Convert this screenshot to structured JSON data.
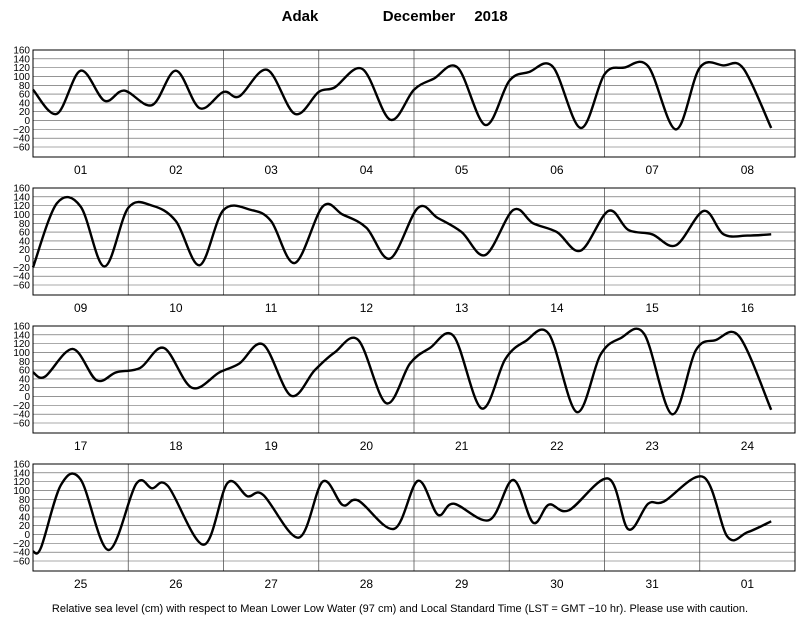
{
  "header": {
    "station": "Adak",
    "month": "December",
    "year": "2018"
  },
  "footnote": "Relative sea level (cm) with respect to Mean Lower Low Water (97 cm) and Local Standard Time (LST = GMT −10 hr). Please use with caution.",
  "chart_data": {
    "type": "line",
    "title": "Adak December 2018",
    "ylabel": "Relative sea level (cm)",
    "ylim": [
      -60,
      160
    ],
    "yticks": [
      160,
      140,
      120,
      100,
      80,
      60,
      40,
      20,
      0,
      -20,
      -40,
      -60
    ],
    "ytick_labels": [
      "160",
      "140",
      "120",
      "100",
      "80",
      "60",
      "40",
      "20",
      "0",
      "−20",
      "−40",
      "−60"
    ],
    "grid": true,
    "x_unit": "hour of day (LST)",
    "panels": [
      {
        "days": [
          "01",
          "02",
          "03",
          "04",
          "05",
          "06",
          "07",
          "08"
        ],
        "series": [
          {
            "x": 0,
            "y": 70
          },
          {
            "x": 6,
            "y": 15
          },
          {
            "x": 12,
            "y": 113
          },
          {
            "x": 18,
            "y": 45
          },
          {
            "x": 23,
            "y": 68
          },
          {
            "x": 30,
            "y": 35
          },
          {
            "x": 36,
            "y": 113
          },
          {
            "x": 42,
            "y": 28
          },
          {
            "x": 48,
            "y": 65
          },
          {
            "x": 52,
            "y": 55
          },
          {
            "x": 59,
            "y": 115
          },
          {
            "x": 66,
            "y": 15
          },
          {
            "x": 72,
            "y": 65
          },
          {
            "x": 76,
            "y": 75
          },
          {
            "x": 83,
            "y": 117
          },
          {
            "x": 90,
            "y": 2
          },
          {
            "x": 96,
            "y": 70
          },
          {
            "x": 101,
            "y": 95
          },
          {
            "x": 107,
            "y": 120
          },
          {
            "x": 114,
            "y": -10
          },
          {
            "x": 120,
            "y": 90
          },
          {
            "x": 125,
            "y": 110
          },
          {
            "x": 131,
            "y": 122
          },
          {
            "x": 138,
            "y": -17
          },
          {
            "x": 144,
            "y": 105
          },
          {
            "x": 149,
            "y": 120
          },
          {
            "x": 155,
            "y": 123
          },
          {
            "x": 162,
            "y": -20
          },
          {
            "x": 168,
            "y": 120
          },
          {
            "x": 174,
            "y": 125
          },
          {
            "x": 179,
            "y": 118
          },
          {
            "x": 186,
            "y": -17
          }
        ]
      },
      {
        "days": [
          "09",
          "10",
          "11",
          "12",
          "13",
          "14",
          "15",
          "16"
        ],
        "series": [
          {
            "x": 0,
            "y": -20
          },
          {
            "x": 6,
            "y": 125
          },
          {
            "x": 12,
            "y": 118
          },
          {
            "x": 18,
            "y": -18
          },
          {
            "x": 24,
            "y": 115
          },
          {
            "x": 30,
            "y": 120
          },
          {
            "x": 36,
            "y": 85
          },
          {
            "x": 42,
            "y": -15
          },
          {
            "x": 48,
            "y": 110
          },
          {
            "x": 55,
            "y": 110
          },
          {
            "x": 60,
            "y": 85
          },
          {
            "x": 66,
            "y": -10
          },
          {
            "x": 73,
            "y": 118
          },
          {
            "x": 78,
            "y": 100
          },
          {
            "x": 84,
            "y": 70
          },
          {
            "x": 90,
            "y": 0
          },
          {
            "x": 97,
            "y": 115
          },
          {
            "x": 102,
            "y": 92
          },
          {
            "x": 108,
            "y": 60
          },
          {
            "x": 114,
            "y": 8
          },
          {
            "x": 121,
            "y": 110
          },
          {
            "x": 126,
            "y": 80
          },
          {
            "x": 132,
            "y": 60
          },
          {
            "x": 138,
            "y": 18
          },
          {
            "x": 145,
            "y": 108
          },
          {
            "x": 150,
            "y": 65
          },
          {
            "x": 156,
            "y": 55
          },
          {
            "x": 162,
            "y": 30
          },
          {
            "x": 169,
            "y": 108
          },
          {
            "x": 174,
            "y": 55
          },
          {
            "x": 180,
            "y": 52
          },
          {
            "x": 186,
            "y": 55
          }
        ]
      },
      {
        "days": [
          "17",
          "18",
          "19",
          "20",
          "21",
          "22",
          "23",
          "24"
        ],
        "series": [
          {
            "x": 0,
            "y": 55
          },
          {
            "x": 3,
            "y": 45
          },
          {
            "x": 10,
            "y": 108
          },
          {
            "x": 16,
            "y": 37
          },
          {
            "x": 21,
            "y": 55
          },
          {
            "x": 27,
            "y": 65
          },
          {
            "x": 33,
            "y": 110
          },
          {
            "x": 40,
            "y": 20
          },
          {
            "x": 47,
            "y": 55
          },
          {
            "x": 52,
            "y": 75
          },
          {
            "x": 58,
            "y": 118
          },
          {
            "x": 65,
            "y": 2
          },
          {
            "x": 71,
            "y": 60
          },
          {
            "x": 76,
            "y": 100
          },
          {
            "x": 82,
            "y": 128
          },
          {
            "x": 89,
            "y": -15
          },
          {
            "x": 95,
            "y": 75
          },
          {
            "x": 100,
            "y": 110
          },
          {
            "x": 106,
            "y": 137
          },
          {
            "x": 113,
            "y": -27
          },
          {
            "x": 119,
            "y": 85
          },
          {
            "x": 124,
            "y": 125
          },
          {
            "x": 130,
            "y": 142
          },
          {
            "x": 137,
            "y": -35
          },
          {
            "x": 143,
            "y": 95
          },
          {
            "x": 148,
            "y": 132
          },
          {
            "x": 154,
            "y": 142
          },
          {
            "x": 161,
            "y": -40
          },
          {
            "x": 167,
            "y": 105
          },
          {
            "x": 172,
            "y": 128
          },
          {
            "x": 178,
            "y": 136
          },
          {
            "x": 186,
            "y": -30
          }
        ]
      },
      {
        "days": [
          "25",
          "26",
          "27",
          "28",
          "29",
          "30",
          "31",
          "01"
        ],
        "series": [
          {
            "x": 0,
            "y": -38
          },
          {
            "x": 2,
            "y": -30
          },
          {
            "x": 7,
            "y": 112
          },
          {
            "x": 12,
            "y": 125
          },
          {
            "x": 19,
            "y": -35
          },
          {
            "x": 26,
            "y": 115
          },
          {
            "x": 30,
            "y": 105
          },
          {
            "x": 34,
            "y": 110
          },
          {
            "x": 43,
            "y": -23
          },
          {
            "x": 49,
            "y": 117
          },
          {
            "x": 54,
            "y": 87
          },
          {
            "x": 58,
            "y": 90
          },
          {
            "x": 67,
            "y": -7
          },
          {
            "x": 73,
            "y": 120
          },
          {
            "x": 78,
            "y": 67
          },
          {
            "x": 82,
            "y": 77
          },
          {
            "x": 91,
            "y": 13
          },
          {
            "x": 97,
            "y": 122
          },
          {
            "x": 102,
            "y": 45
          },
          {
            "x": 106,
            "y": 70
          },
          {
            "x": 115,
            "y": 33
          },
          {
            "x": 121,
            "y": 124
          },
          {
            "x": 126,
            "y": 27
          },
          {
            "x": 130,
            "y": 68
          },
          {
            "x": 135,
            "y": 55
          },
          {
            "x": 145,
            "y": 127
          },
          {
            "x": 150,
            "y": 12
          },
          {
            "x": 155,
            "y": 70
          },
          {
            "x": 159,
            "y": 75
          },
          {
            "x": 169,
            "y": 130
          },
          {
            "x": 175,
            "y": -5
          },
          {
            "x": 180,
            "y": 5
          },
          {
            "x": 186,
            "y": 30
          }
        ]
      }
    ]
  }
}
